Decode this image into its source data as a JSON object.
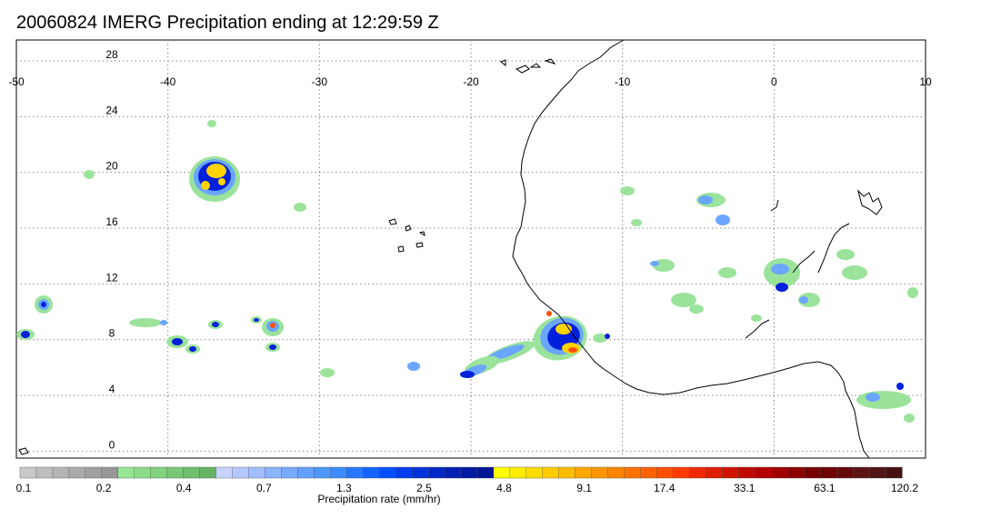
{
  "title": "20060824 IMERG Precipitation ending at 12:29:59 Z",
  "map": {
    "lon_ticks": [
      "-50",
      "-40",
      "-30",
      "-20",
      "-10",
      "0",
      "10"
    ],
    "lat_ticks": [
      "28",
      "24",
      "20",
      "16",
      "12",
      "8",
      "4",
      "0"
    ],
    "lon_range": [
      -50,
      10
    ],
    "lat_range": [
      -0.5,
      29.5
    ],
    "grid": true
  },
  "colorbar": {
    "label": "Precipitation rate (mm/hr)",
    "tick_labels": [
      "0.1",
      "0.2",
      "0.4",
      "0.7",
      "1.3",
      "2.5",
      "4.8",
      "9.1",
      "17.4",
      "33.1",
      "63.1",
      "120.2"
    ],
    "colors": [
      "#c8c8c8",
      "#bebebe",
      "#b4b4b4",
      "#aaaaaa",
      "#a0a0a0",
      "#969696",
      "#96e696",
      "#8cdc8c",
      "#82d282",
      "#78c878",
      "#6ebe6e",
      "#64b464",
      "#c8d2ff",
      "#b4c8ff",
      "#a0beff",
      "#8cb4ff",
      "#78aaff",
      "#64a0ff",
      "#5096ff",
      "#3c8cff",
      "#2878ff",
      "#1464ff",
      "#0050ff",
      "#003cf0",
      "#0032dc",
      "#0028c8",
      "#0020b4",
      "#001aa0",
      "#001496",
      "#ffff00",
      "#ffec00",
      "#ffdc00",
      "#ffcc00",
      "#ffbc00",
      "#ffa800",
      "#ff9600",
      "#ff8400",
      "#ff7200",
      "#ff6000",
      "#ff4e00",
      "#ff3c00",
      "#f02800",
      "#e01e00",
      "#d01400",
      "#c00a00",
      "#b40000",
      "#a00000",
      "#8c0000",
      "#780000",
      "#6e0000",
      "#640a0a",
      "#5a1414",
      "#501414",
      "#461010"
    ]
  },
  "colors": {
    "light": "#9be39b",
    "moderate": "#6aa6ff",
    "heavy": "#0020dc",
    "intense": "#ffd200",
    "extreme": "#ff5000",
    "coast": "#000000",
    "grid": "#888888"
  }
}
